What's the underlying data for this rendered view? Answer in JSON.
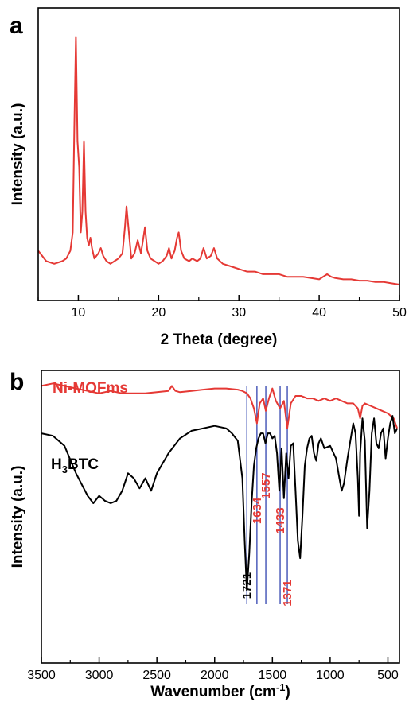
{
  "chart_data": [
    {
      "panel": "a",
      "type": "line",
      "xlabel": "2 Theta (degree)",
      "ylabel": "Intensity (a.u.)",
      "xlim": [
        5,
        50
      ],
      "ylim": [
        0,
        100
      ],
      "xticks": [
        10,
        20,
        30,
        40,
        50
      ],
      "grid": false,
      "color": "#e53935",
      "series": [
        {
          "x": [
            5,
            6,
            7,
            8,
            8.5,
            9,
            9.3,
            9.5,
            9.7,
            9.9,
            10.1,
            10.3,
            10.5,
            10.7,
            10.9,
            11.1,
            11.3,
            11.5,
            11.7,
            12,
            12.5,
            12.8,
            13.1,
            13.5,
            14,
            14.5,
            15,
            15.5,
            15.8,
            16.0,
            16.3,
            16.6,
            17.0,
            17.4,
            17.8,
            18.0,
            18.3,
            18.6,
            19,
            19.5,
            20,
            20.5,
            21,
            21.3,
            21.6,
            22,
            22.3,
            22.5,
            22.8,
            23.2,
            23.8,
            24.2,
            24.8,
            25.2,
            25.6,
            26,
            26.5,
            26.9,
            27.3,
            28,
            29,
            30,
            31,
            32,
            33,
            34,
            35,
            36,
            37,
            38,
            39,
            40,
            41,
            41.5,
            42,
            43,
            44,
            45,
            46,
            47,
            48,
            49,
            50
          ],
          "y": [
            13,
            9,
            8,
            9,
            10,
            13,
            20,
            60,
            95,
            55,
            45,
            20,
            28,
            55,
            28,
            18,
            15,
            18,
            14,
            10,
            12,
            14,
            11,
            9,
            8,
            9,
            10,
            12,
            22,
            30,
            20,
            10,
            12,
            17,
            12,
            16,
            22,
            13,
            10,
            9,
            8,
            9,
            11,
            14,
            10,
            13,
            18,
            20,
            13,
            10,
            9,
            10,
            9,
            10,
            14,
            10,
            11,
            14,
            10,
            8,
            7,
            6,
            5,
            5,
            4,
            4,
            4,
            3,
            3,
            3,
            2.5,
            2,
            4,
            3,
            2.5,
            2,
            2,
            1.5,
            1.5,
            1,
            1,
            0.5,
            0
          ]
        }
      ]
    },
    {
      "panel": "b",
      "type": "line",
      "xlabel": "Wavenumber (cm",
      "xlabel_sup": "-1",
      "xlabel_end": ")",
      "ylabel": "Intensity (a.u.)",
      "xlim": [
        3500,
        400
      ],
      "ylim": [
        0,
        100
      ],
      "xticks": [
        3500,
        3000,
        2500,
        2000,
        1500,
        1000,
        500
      ],
      "grid": false,
      "peak_lines": [
        1721,
        1634,
        1557,
        1433,
        1371
      ],
      "peak_labels": [
        {
          "value": "1721",
          "color": "#000000",
          "y": 17
        },
        {
          "value": "1634",
          "color": "#e53935",
          "y": 47
        },
        {
          "value": "1557",
          "color": "#e53935",
          "y": 57
        },
        {
          "value": "1433",
          "color": "#e53935",
          "y": 43
        },
        {
          "value": "1371",
          "color": "#e53935",
          "y": 14
        }
      ],
      "peak_line_color": "#3f51b5",
      "series": [
        {
          "name": "Ni-MOFms",
          "color": "#e53935",
          "x": [
            3500,
            3400,
            3300,
            3200,
            3100,
            3000,
            2900,
            2800,
            2700,
            2600,
            2500,
            2400,
            2370,
            2340,
            2300,
            2200,
            2100,
            2000,
            1900,
            1800,
            1760,
            1720,
            1690,
            1660,
            1634,
            1610,
            1580,
            1557,
            1530,
            1500,
            1470,
            1433,
            1400,
            1371,
            1340,
            1300,
            1250,
            1200,
            1150,
            1100,
            1050,
            1000,
            950,
            900,
            850,
            800,
            760,
            740,
            720,
            700,
            650,
            600,
            550,
            500,
            450,
            420
          ],
          "y": [
            97,
            98,
            97,
            96,
            95,
            94,
            95,
            94,
            94,
            94,
            94.5,
            95,
            97,
            95,
            94.5,
            95,
            95.5,
            96,
            96,
            95.5,
            95,
            94,
            92,
            88,
            82,
            90,
            92,
            87,
            92,
            96,
            91,
            88,
            91,
            80,
            90,
            93,
            93,
            92,
            92,
            91,
            92,
            91,
            92,
            91,
            90,
            90,
            88,
            84,
            89,
            90,
            89,
            88,
            87,
            86,
            84,
            80
          ]
        },
        {
          "name": "H3BTC",
          "label_main": "H",
          "label_sub": "3",
          "label_end": "BTC",
          "color": "#000000",
          "x": [
            3500,
            3400,
            3300,
            3200,
            3100,
            3050,
            3000,
            2950,
            2900,
            2850,
            2800,
            2750,
            2700,
            2650,
            2600,
            2550,
            2500,
            2400,
            2300,
            2200,
            2100,
            2000,
            1900,
            1850,
            1800,
            1760,
            1740,
            1721,
            1700,
            1680,
            1660,
            1640,
            1620,
            1600,
            1580,
            1560,
            1540,
            1520,
            1500,
            1480,
            1460,
            1440,
            1420,
            1400,
            1380,
            1360,
            1340,
            1320,
            1300,
            1280,
            1260,
            1240,
            1220,
            1200,
            1180,
            1160,
            1140,
            1120,
            1100,
            1080,
            1050,
            1000,
            950,
            920,
            900,
            880,
            850,
            800,
            780,
            760,
            750,
            740,
            720,
            700,
            680,
            660,
            640,
            620,
            600,
            580,
            560,
            540,
            520,
            500,
            480,
            460,
            440,
            420
          ],
          "y": [
            78,
            77,
            73,
            62,
            53,
            50,
            53,
            51,
            50,
            51,
            55,
            62,
            60,
            56,
            60,
            55,
            62,
            70,
            76,
            79,
            80,
            81,
            80,
            78,
            75,
            60,
            35,
            15,
            30,
            50,
            65,
            72,
            76,
            78,
            78,
            74,
            78,
            78,
            76,
            77,
            70,
            55,
            72,
            52,
            70,
            60,
            73,
            74,
            55,
            35,
            28,
            45,
            65,
            72,
            76,
            77,
            70,
            67,
            74,
            76,
            72,
            73,
            68,
            60,
            55,
            58,
            68,
            82,
            78,
            60,
            45,
            70,
            84,
            75,
            40,
            55,
            78,
            84,
            74,
            72,
            78,
            80,
            68,
            76,
            82,
            85,
            78,
            80
          ]
        }
      ]
    }
  ]
}
